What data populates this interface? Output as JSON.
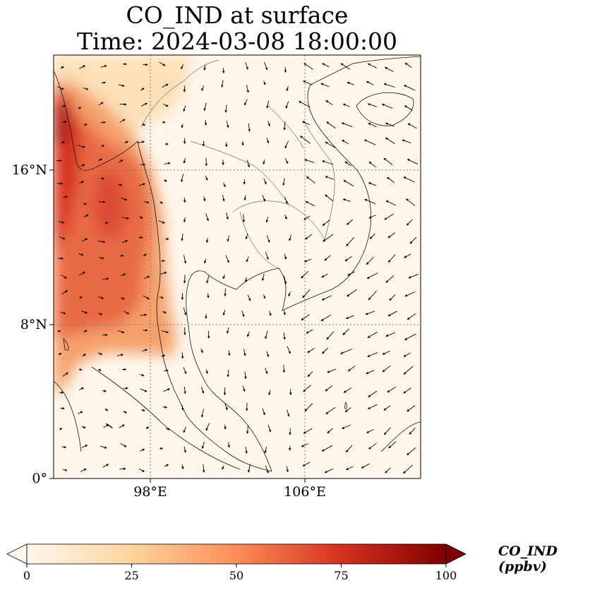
{
  "title": {
    "line1": "CO_IND at surface",
    "line2": "Time: 2024-03-08 18:00:00"
  },
  "map": {
    "lat_range": [
      0,
      22
    ],
    "lon_range": [
      93,
      112
    ],
    "lat_ticks": [
      {
        "value": 16,
        "label": "16°N"
      },
      {
        "value": 8,
        "label": "8°N"
      },
      {
        "value": 0,
        "label": "0°"
      }
    ],
    "lon_ticks": [
      {
        "value": 98,
        "label": "98°E"
      },
      {
        "value": 106,
        "label": "106°E"
      }
    ],
    "gridlines": true,
    "wind_vectors": true
  },
  "colorbar": {
    "title": "CO_IND (ppbv)",
    "min": 0,
    "max": 100,
    "ticks": [
      "0",
      "25",
      "50",
      "75",
      "100"
    ],
    "colormap": "OrRd",
    "colors": [
      "#fff7ec",
      "#fdd49e",
      "#fc8d59",
      "#d7301f",
      "#7f0000"
    ],
    "extend": "both"
  }
}
